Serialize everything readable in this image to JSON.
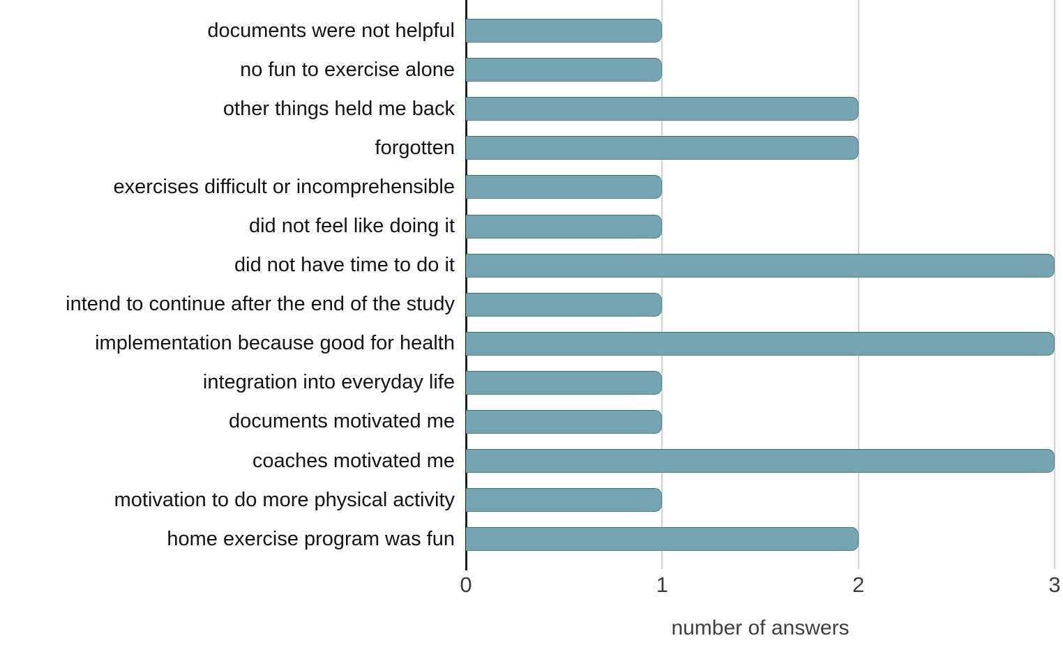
{
  "chart_data": {
    "type": "bar",
    "orientation": "horizontal",
    "title": "",
    "categories": [
      "documents were not helpful",
      "no fun to exercise alone",
      "other things held me back",
      "forgotten",
      "exercises difficult or incomprehensible",
      "did not feel like doing it",
      "did not have time to do it",
      "intend to continue after the end of the study",
      "implementation because good for health",
      "integration into everyday life",
      "documents motivated me",
      "coaches motivated me",
      "motivation to do more physical activity",
      "home exercise program was fun"
    ],
    "values": [
      1,
      1,
      2,
      2,
      1,
      1,
      3,
      1,
      3,
      1,
      1,
      3,
      1,
      2
    ],
    "xlabel": "number of answers",
    "ylabel": "",
    "xticks": [
      0,
      1,
      2,
      3
    ],
    "xlim": [
      0,
      3
    ],
    "grid": true,
    "legend": "none",
    "bar_color": "#76a5af",
    "bar_border_color": "#4f808d",
    "gridline_color": "#d2d2d2",
    "axis_line_color": "#1b1b1b",
    "label_color": "#141414",
    "tick_label_color": "#3c3c3c"
  }
}
